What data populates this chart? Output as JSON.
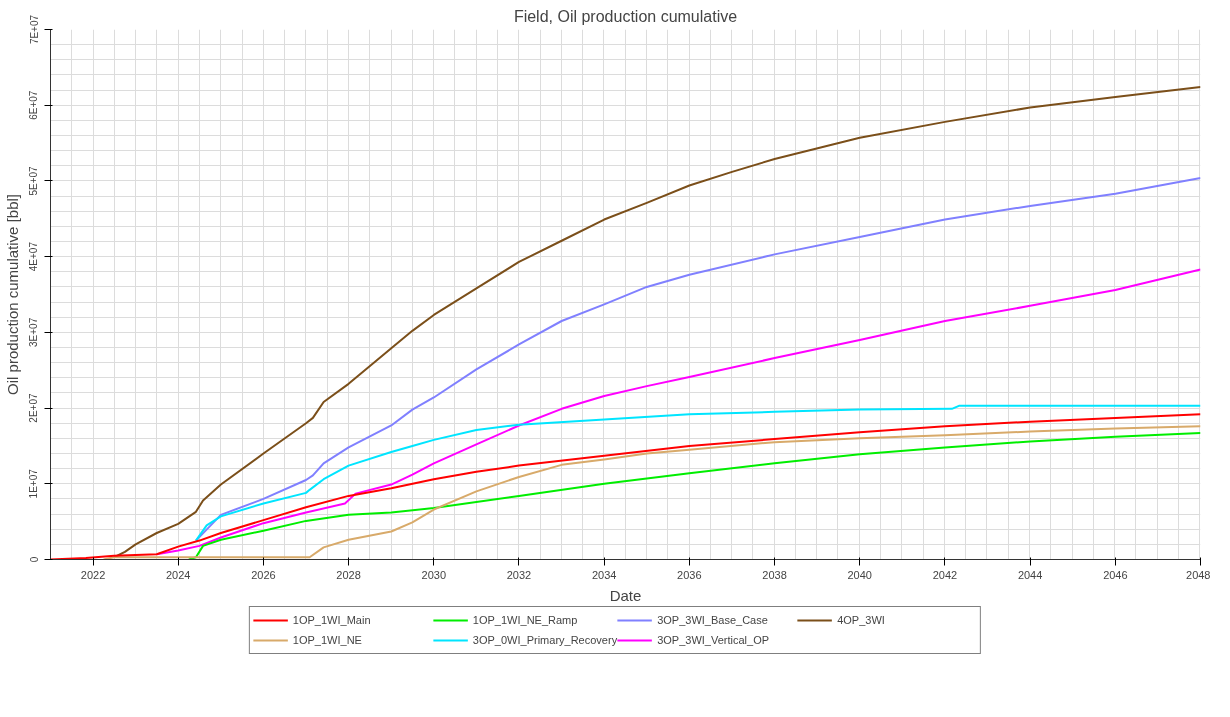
{
  "chart_data": {
    "type": "line",
    "title": "Field, Oil production cumulative",
    "xlabel": "Date",
    "ylabel": "Oil production cumulative [bbl]",
    "xlim": [
      "2021-01",
      "2048-01"
    ],
    "xticks": [
      {
        "value": "2022-01",
        "label": "2022"
      },
      {
        "value": "2024-01",
        "label": "2024"
      },
      {
        "value": "2026-01",
        "label": "2026"
      },
      {
        "value": "2028-01",
        "label": "2028"
      },
      {
        "value": "2030-01",
        "label": "2030"
      },
      {
        "value": "2032-01",
        "label": "2032"
      },
      {
        "value": "2034-01",
        "label": "2034"
      },
      {
        "value": "2036-01",
        "label": "2036"
      },
      {
        "value": "2038-01",
        "label": "2038"
      },
      {
        "value": "2040-01",
        "label": "2040"
      },
      {
        "value": "2042-01",
        "label": "2042"
      },
      {
        "value": "2044-01",
        "label": "2044"
      },
      {
        "value": "2046-01",
        "label": "2046"
      },
      {
        "value": "2048-01",
        "label": "2048"
      }
    ],
    "ylim": [
      0,
      70000000
    ],
    "yticks": [
      {
        "value": 0,
        "label": "0"
      },
      {
        "value": 10000000,
        "label": "1E+07"
      },
      {
        "value": 20000000,
        "label": "2E+07"
      },
      {
        "value": 30000000,
        "label": "3E+07"
      },
      {
        "value": 40000000,
        "label": "4E+07"
      },
      {
        "value": 50000000,
        "label": "5E+07"
      },
      {
        "value": 60000000,
        "label": "6E+07"
      },
      {
        "value": 70000000,
        "label": "7E+07"
      }
    ],
    "grid": true,
    "legend": "bottom",
    "marker": "none",
    "line_style": "solid",
    "series": [
      {
        "name": "1OP_1WI_Main",
        "color": "#ff0000",
        "x": [
          "2021-01",
          "2021-11",
          "2022-07",
          "2023-07",
          "2024-01",
          "2024-07",
          "2025-01",
          "2026-01",
          "2027-01",
          "2028-01",
          "2029-01",
          "2030-01",
          "2031-01",
          "2032-01",
          "2034-01",
          "2036-01",
          "2038-01",
          "2040-01",
          "2042-01",
          "2044-01",
          "2046-01",
          "2048-01"
        ],
        "values": [
          0,
          200000,
          500000,
          700000,
          1700000,
          2500000,
          3500000,
          5200000,
          6900000,
          8400000,
          9400000,
          10600000,
          11600000,
          12400000,
          13700000,
          15000000,
          15900000,
          16800000,
          17600000,
          18200000,
          18700000,
          19200000
        ]
      },
      {
        "name": "1OP_1WI_NE",
        "color": "#d8aa6a",
        "x": [
          "2022-04",
          "2022-07",
          "2027-02",
          "2027-06",
          "2028-01",
          "2029-01",
          "2029-07",
          "2030-01",
          "2031-01",
          "2032-01",
          "2033-01",
          "2034-01",
          "2035-01",
          "2036-01",
          "2038-01",
          "2040-01",
          "2042-01",
          "2044-01",
          "2046-01",
          "2048-01"
        ],
        "values": [
          0,
          300000,
          300000,
          1600000,
          2600000,
          3700000,
          4900000,
          6600000,
          9000000,
          10900000,
          12500000,
          13200000,
          14000000,
          14500000,
          15500000,
          16000000,
          16400000,
          16900000,
          17300000,
          17600000
        ]
      },
      {
        "name": "1OP_1WI_NE_Ramp",
        "color": "#00ee00",
        "x": [
          "2024-04",
          "2024-06",
          "2024-08",
          "2025-01",
          "2026-01",
          "2027-01",
          "2028-01",
          "2029-01",
          "2030-01",
          "2032-01",
          "2034-01",
          "2036-01",
          "2038-01",
          "2040-01",
          "2042-01",
          "2044-01",
          "2046-01",
          "2048-01"
        ],
        "values": [
          0,
          300000,
          1800000,
          2600000,
          3800000,
          5100000,
          5900000,
          6200000,
          6800000,
          8400000,
          10000000,
          11400000,
          12700000,
          13900000,
          14800000,
          15600000,
          16200000,
          16700000
        ]
      },
      {
        "name": "3OP_0WI_Primary_Recovery",
        "color": "#00e5ff",
        "x": [
          "2024-06",
          "2024-09",
          "2025-01",
          "2026-01",
          "2027-01",
          "2027-02",
          "2027-06",
          "2028-01",
          "2029-01",
          "2029-07",
          "2030-01",
          "2031-01",
          "2032-01",
          "2034-01",
          "2036-01",
          "2038-01",
          "2040-01",
          "2042-03",
          "2042-05",
          "2048-01"
        ],
        "values": [
          2500000,
          4500000,
          5700000,
          7400000,
          8800000,
          9200000,
          10600000,
          12400000,
          14200000,
          15000000,
          15800000,
          17100000,
          17800000,
          18500000,
          19200000,
          19500000,
          19800000,
          19900000,
          20300000,
          20300000
        ]
      },
      {
        "name": "3OP_3WI_Base_Case",
        "color": "#8080ff",
        "x": [
          "2024-06",
          "2025-01",
          "2026-01",
          "2027-01",
          "2027-03",
          "2027-06",
          "2028-01",
          "2029-01",
          "2029-07",
          "2030-01",
          "2031-01",
          "2032-01",
          "2033-01",
          "2034-01",
          "2035-01",
          "2036-01",
          "2038-01",
          "2040-01",
          "2042-01",
          "2044-01",
          "2046-01",
          "2048-01"
        ],
        "values": [
          2500000,
          5900000,
          8000000,
          10500000,
          11100000,
          12700000,
          14800000,
          17700000,
          19800000,
          21400000,
          25100000,
          28400000,
          31500000,
          33700000,
          36000000,
          37600000,
          40300000,
          42600000,
          44900000,
          46700000,
          48300000,
          50400000
        ]
      },
      {
        "name": "3OP_3WI_Vertical_OP",
        "color": "#ff00ff",
        "x": [
          "2023-07",
          "2024-01",
          "2024-07",
          "2025-01",
          "2026-01",
          "2027-01",
          "2027-12",
          "2028-03",
          "2029-01",
          "2029-07",
          "2030-01",
          "2031-01",
          "2032-01",
          "2033-01",
          "2034-01",
          "2035-01",
          "2036-01",
          "2038-01",
          "2040-01",
          "2042-01",
          "2044-01",
          "2046-01",
          "2048-01"
        ],
        "values": [
          700000,
          1200000,
          1800000,
          2900000,
          4800000,
          6200000,
          7400000,
          8700000,
          9900000,
          11200000,
          12700000,
          15200000,
          17700000,
          19900000,
          21600000,
          22900000,
          24100000,
          26600000,
          29000000,
          31500000,
          33500000,
          35600000,
          38300000
        ]
      },
      {
        "name": "4OP_3WI",
        "color": "#7b4f1a",
        "x": [
          "2022-07",
          "2022-10",
          "2023-01",
          "2023-07",
          "2024-01",
          "2024-06",
          "2024-08",
          "2025-01",
          "2026-01",
          "2027-01",
          "2027-03",
          "2027-06",
          "2028-01",
          "2029-01",
          "2029-07",
          "2030-01",
          "2031-01",
          "2032-01",
          "2033-01",
          "2034-01",
          "2035-01",
          "2036-01",
          "2037-01",
          "2038-01",
          "2040-01",
          "2042-01",
          "2044-01",
          "2046-01",
          "2048-01"
        ],
        "values": [
          300000,
          1000000,
          2000000,
          3500000,
          4700000,
          6300000,
          7800000,
          9900000,
          14000000,
          18000000,
          18700000,
          20800000,
          23200000,
          27900000,
          30200000,
          32300000,
          35800000,
          39300000,
          42100000,
          44900000,
          47100000,
          49400000,
          51200000,
          52900000,
          55700000,
          57800000,
          59700000,
          61100000,
          62400000
        ]
      }
    ]
  }
}
